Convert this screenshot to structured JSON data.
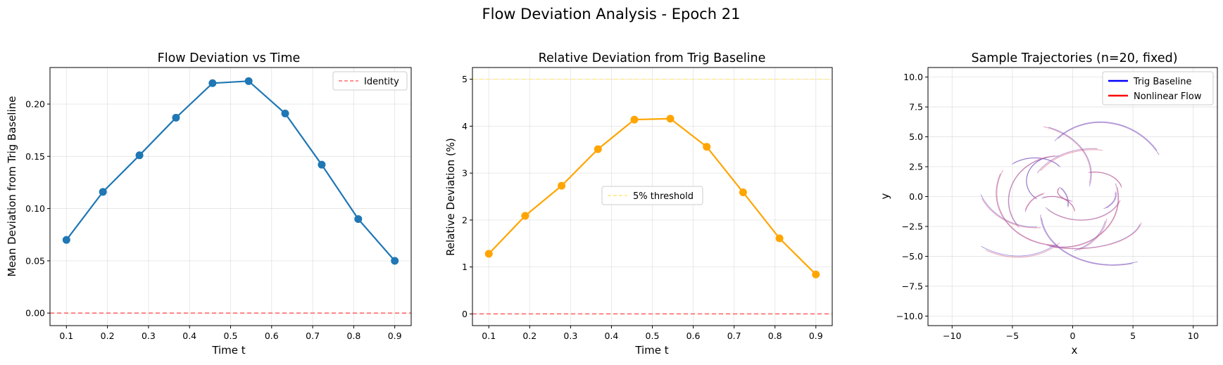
{
  "figure": {
    "suptitle": "Flow Deviation Analysis - Epoch 21"
  },
  "chart_data": [
    {
      "type": "line",
      "title": "Flow Deviation vs Time",
      "xlabel": "Time t",
      "ylabel": "Mean Deviation from Trig Baseline",
      "xlim": [
        0.06,
        0.94
      ],
      "ylim": [
        -0.012,
        0.235
      ],
      "xticks": [
        "0.1",
        "0.2",
        "0.3",
        "0.4",
        "0.5",
        "0.6",
        "0.7",
        "0.8",
        "0.9"
      ],
      "yticks": [
        "0.00",
        "0.05",
        "0.10",
        "0.15",
        "0.20"
      ],
      "grid": true,
      "legend_position": "upper right",
      "series": [
        {
          "color": "#1f77b4",
          "marker": "circle",
          "x": [
            0.1,
            0.189,
            0.278,
            0.367,
            0.456,
            0.544,
            0.633,
            0.722,
            0.811,
            0.9
          ],
          "y": [
            0.07,
            0.116,
            0.151,
            0.187,
            0.22,
            0.222,
            0.191,
            0.142,
            0.09,
            0.05
          ]
        }
      ],
      "hlines": [
        {
          "name": "Identity",
          "y": 0,
          "color": "#ff6b6b",
          "style": "dashed"
        }
      ]
    },
    {
      "type": "line",
      "title": "Relative Deviation from Trig Baseline",
      "xlabel": "Time t",
      "ylabel": "Relative Deviation (%)",
      "xlim": [
        0.06,
        0.94
      ],
      "ylim": [
        -0.25,
        5.25
      ],
      "xticks": [
        "0.1",
        "0.2",
        "0.3",
        "0.4",
        "0.5",
        "0.6",
        "0.7",
        "0.8",
        "0.9"
      ],
      "yticks": [
        "0",
        "1",
        "2",
        "3",
        "4",
        "5"
      ],
      "grid": true,
      "legend_position": "center",
      "series": [
        {
          "color": "#ffa500",
          "marker": "circle",
          "x": [
            0.1,
            0.189,
            0.278,
            0.367,
            0.456,
            0.544,
            0.633,
            0.722,
            0.811,
            0.9
          ],
          "y": [
            1.28,
            2.09,
            2.73,
            3.51,
            4.14,
            4.16,
            3.56,
            2.59,
            1.61,
            0.84
          ]
        }
      ],
      "hlines": [
        {
          "name": "5% threshold",
          "y": 5,
          "color": "#ffe97a",
          "style": "dashed"
        },
        {
          "y": 0,
          "color": "#ff6b6b",
          "style": "dashed"
        }
      ]
    },
    {
      "type": "line",
      "title": "Sample Trajectories (n=20, fixed)",
      "xlabel": "x",
      "ylabel": "y",
      "xlim": [
        -12,
        12
      ],
      "ylim": [
        -10.8,
        10.8
      ],
      "xticks": [
        "−10",
        "−5",
        "0",
        "5",
        "10"
      ],
      "yticks": [
        "−10.0",
        "−7.5",
        "−5.0",
        "−2.5",
        "0.0",
        "2.5",
        "5.0",
        "7.5",
        "10.0"
      ],
      "grid": true,
      "legend_position": "upper right",
      "legend": [
        {
          "name": "Trig Baseline",
          "color": "#0000ff"
        },
        {
          "name": "Nonlinear Flow",
          "color": "#ff0000"
        }
      ],
      "trajectory_colors": [
        "#6a5acd",
        "#e06080",
        "#9b4fa8"
      ]
    }
  ]
}
